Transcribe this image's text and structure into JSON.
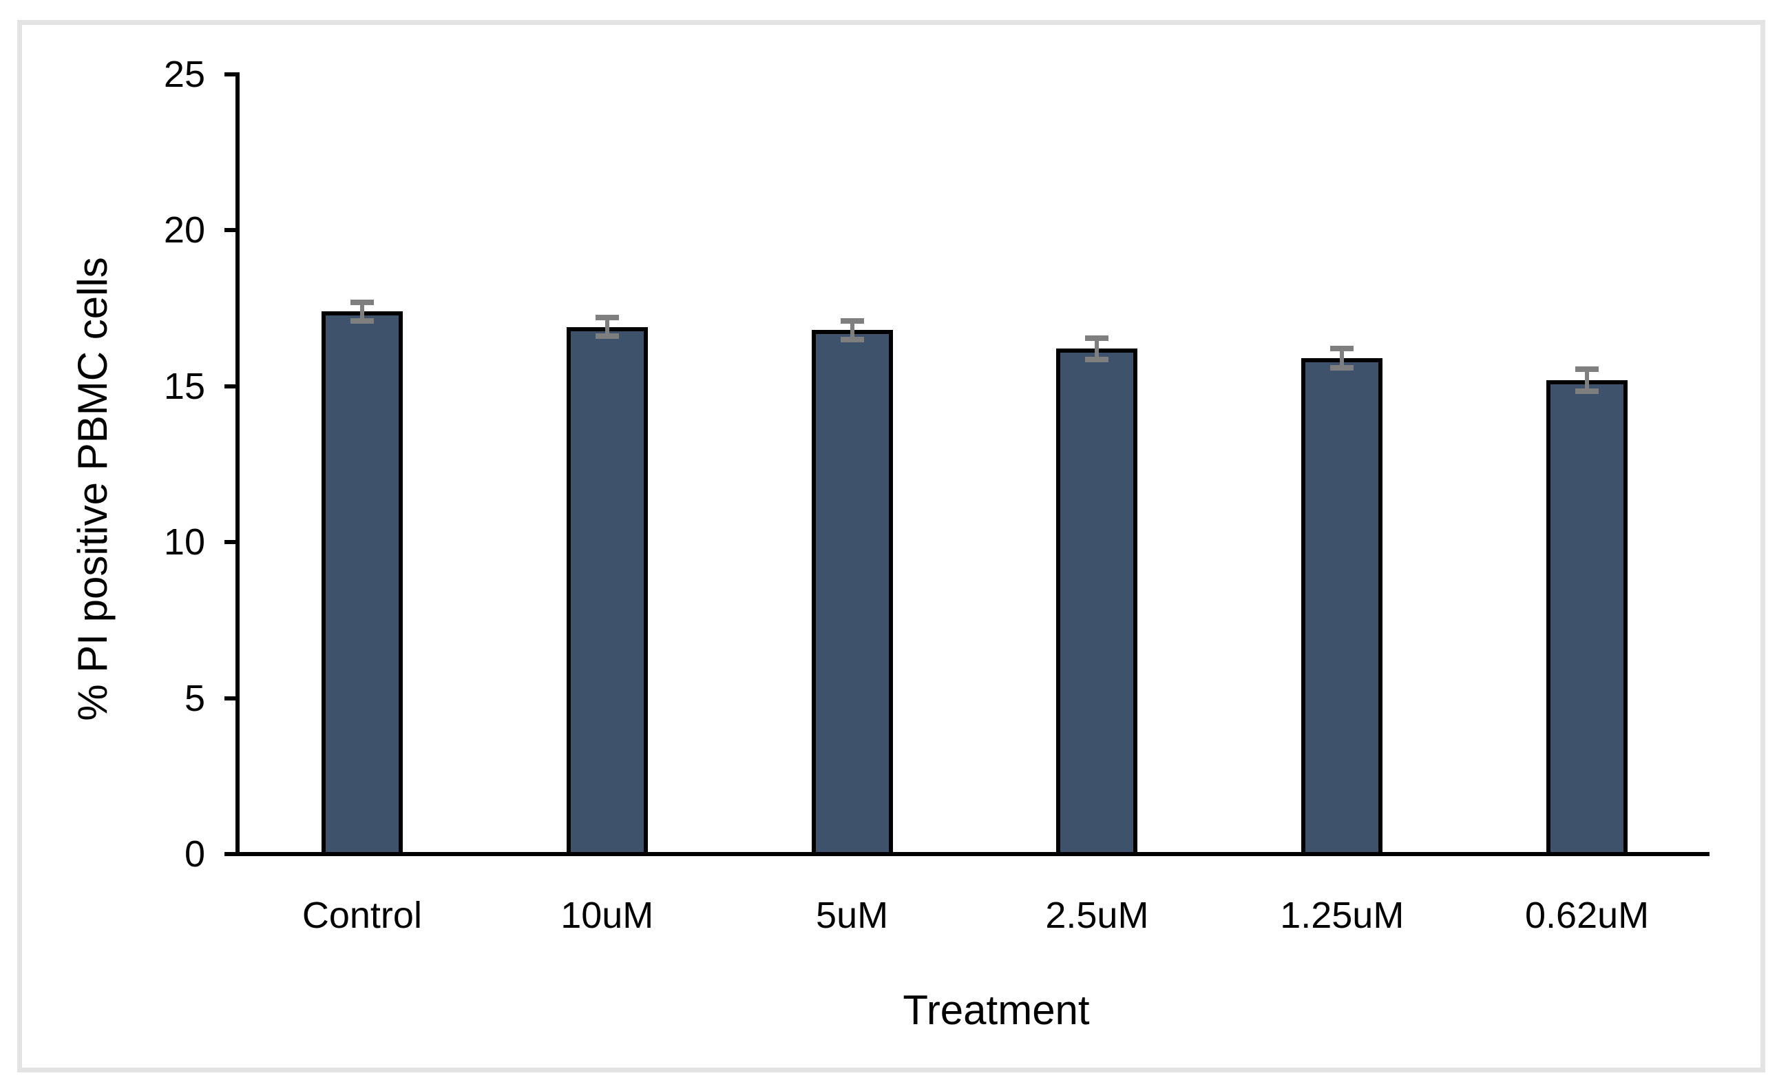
{
  "chart_data": {
    "type": "bar",
    "title": "",
    "categories": [
      "Control",
      "10uM",
      "5uM",
      "2.5uM",
      "1.25uM",
      "0.62uM"
    ],
    "values": [
      17.4,
      16.9,
      16.8,
      16.2,
      15.9,
      15.2
    ],
    "error_bars": [
      0.3,
      0.3,
      0.3,
      0.35,
      0.3,
      0.35
    ],
    "xlabel": "Treatment",
    "ylabel": "% PI positive PBMC cells",
    "ylim": [
      0,
      25
    ],
    "yticks": [
      0,
      5,
      10,
      15,
      20,
      25
    ],
    "ytick_labels": [
      "0",
      "5",
      "10",
      "15",
      "20",
      "25"
    ],
    "grid": false,
    "legend": "none",
    "colors": {
      "bar_fill": "#3E526B",
      "bar_border": "#000000",
      "error_bar": "#7F7F7F",
      "axis": "#000000",
      "text": "#000000",
      "frame_border": "#E3E3E3",
      "background": "#FFFFFF"
    }
  }
}
